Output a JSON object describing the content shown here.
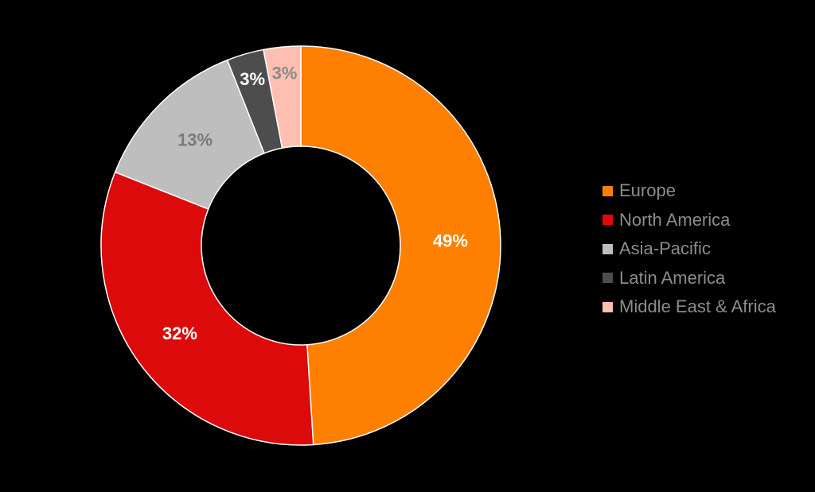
{
  "chart_data": {
    "type": "pie",
    "donut": true,
    "start_angle_deg": 0,
    "direction": "clockwise",
    "legend_position": "right",
    "slices": [
      {
        "name": "Europe",
        "value": 49,
        "label": "49%",
        "color": "#ff8000",
        "label_color": "#ffffff"
      },
      {
        "name": "North America",
        "value": 32,
        "label": "32%",
        "color": "#dc0a0a",
        "label_color": "#ffffff"
      },
      {
        "name": "Asia-Pacific",
        "value": 13,
        "label": "13%",
        "color": "#bebebe",
        "label_color": "#7a7a7a"
      },
      {
        "name": "Latin America",
        "value": 3,
        "label": "3%",
        "color": "#4d4d4d",
        "label_color": "#ffffff"
      },
      {
        "name": "Middle East & Africa",
        "value": 3,
        "label": "3%",
        "color": "#ffbfb0",
        "label_color": "#8a8a8a"
      }
    ]
  }
}
